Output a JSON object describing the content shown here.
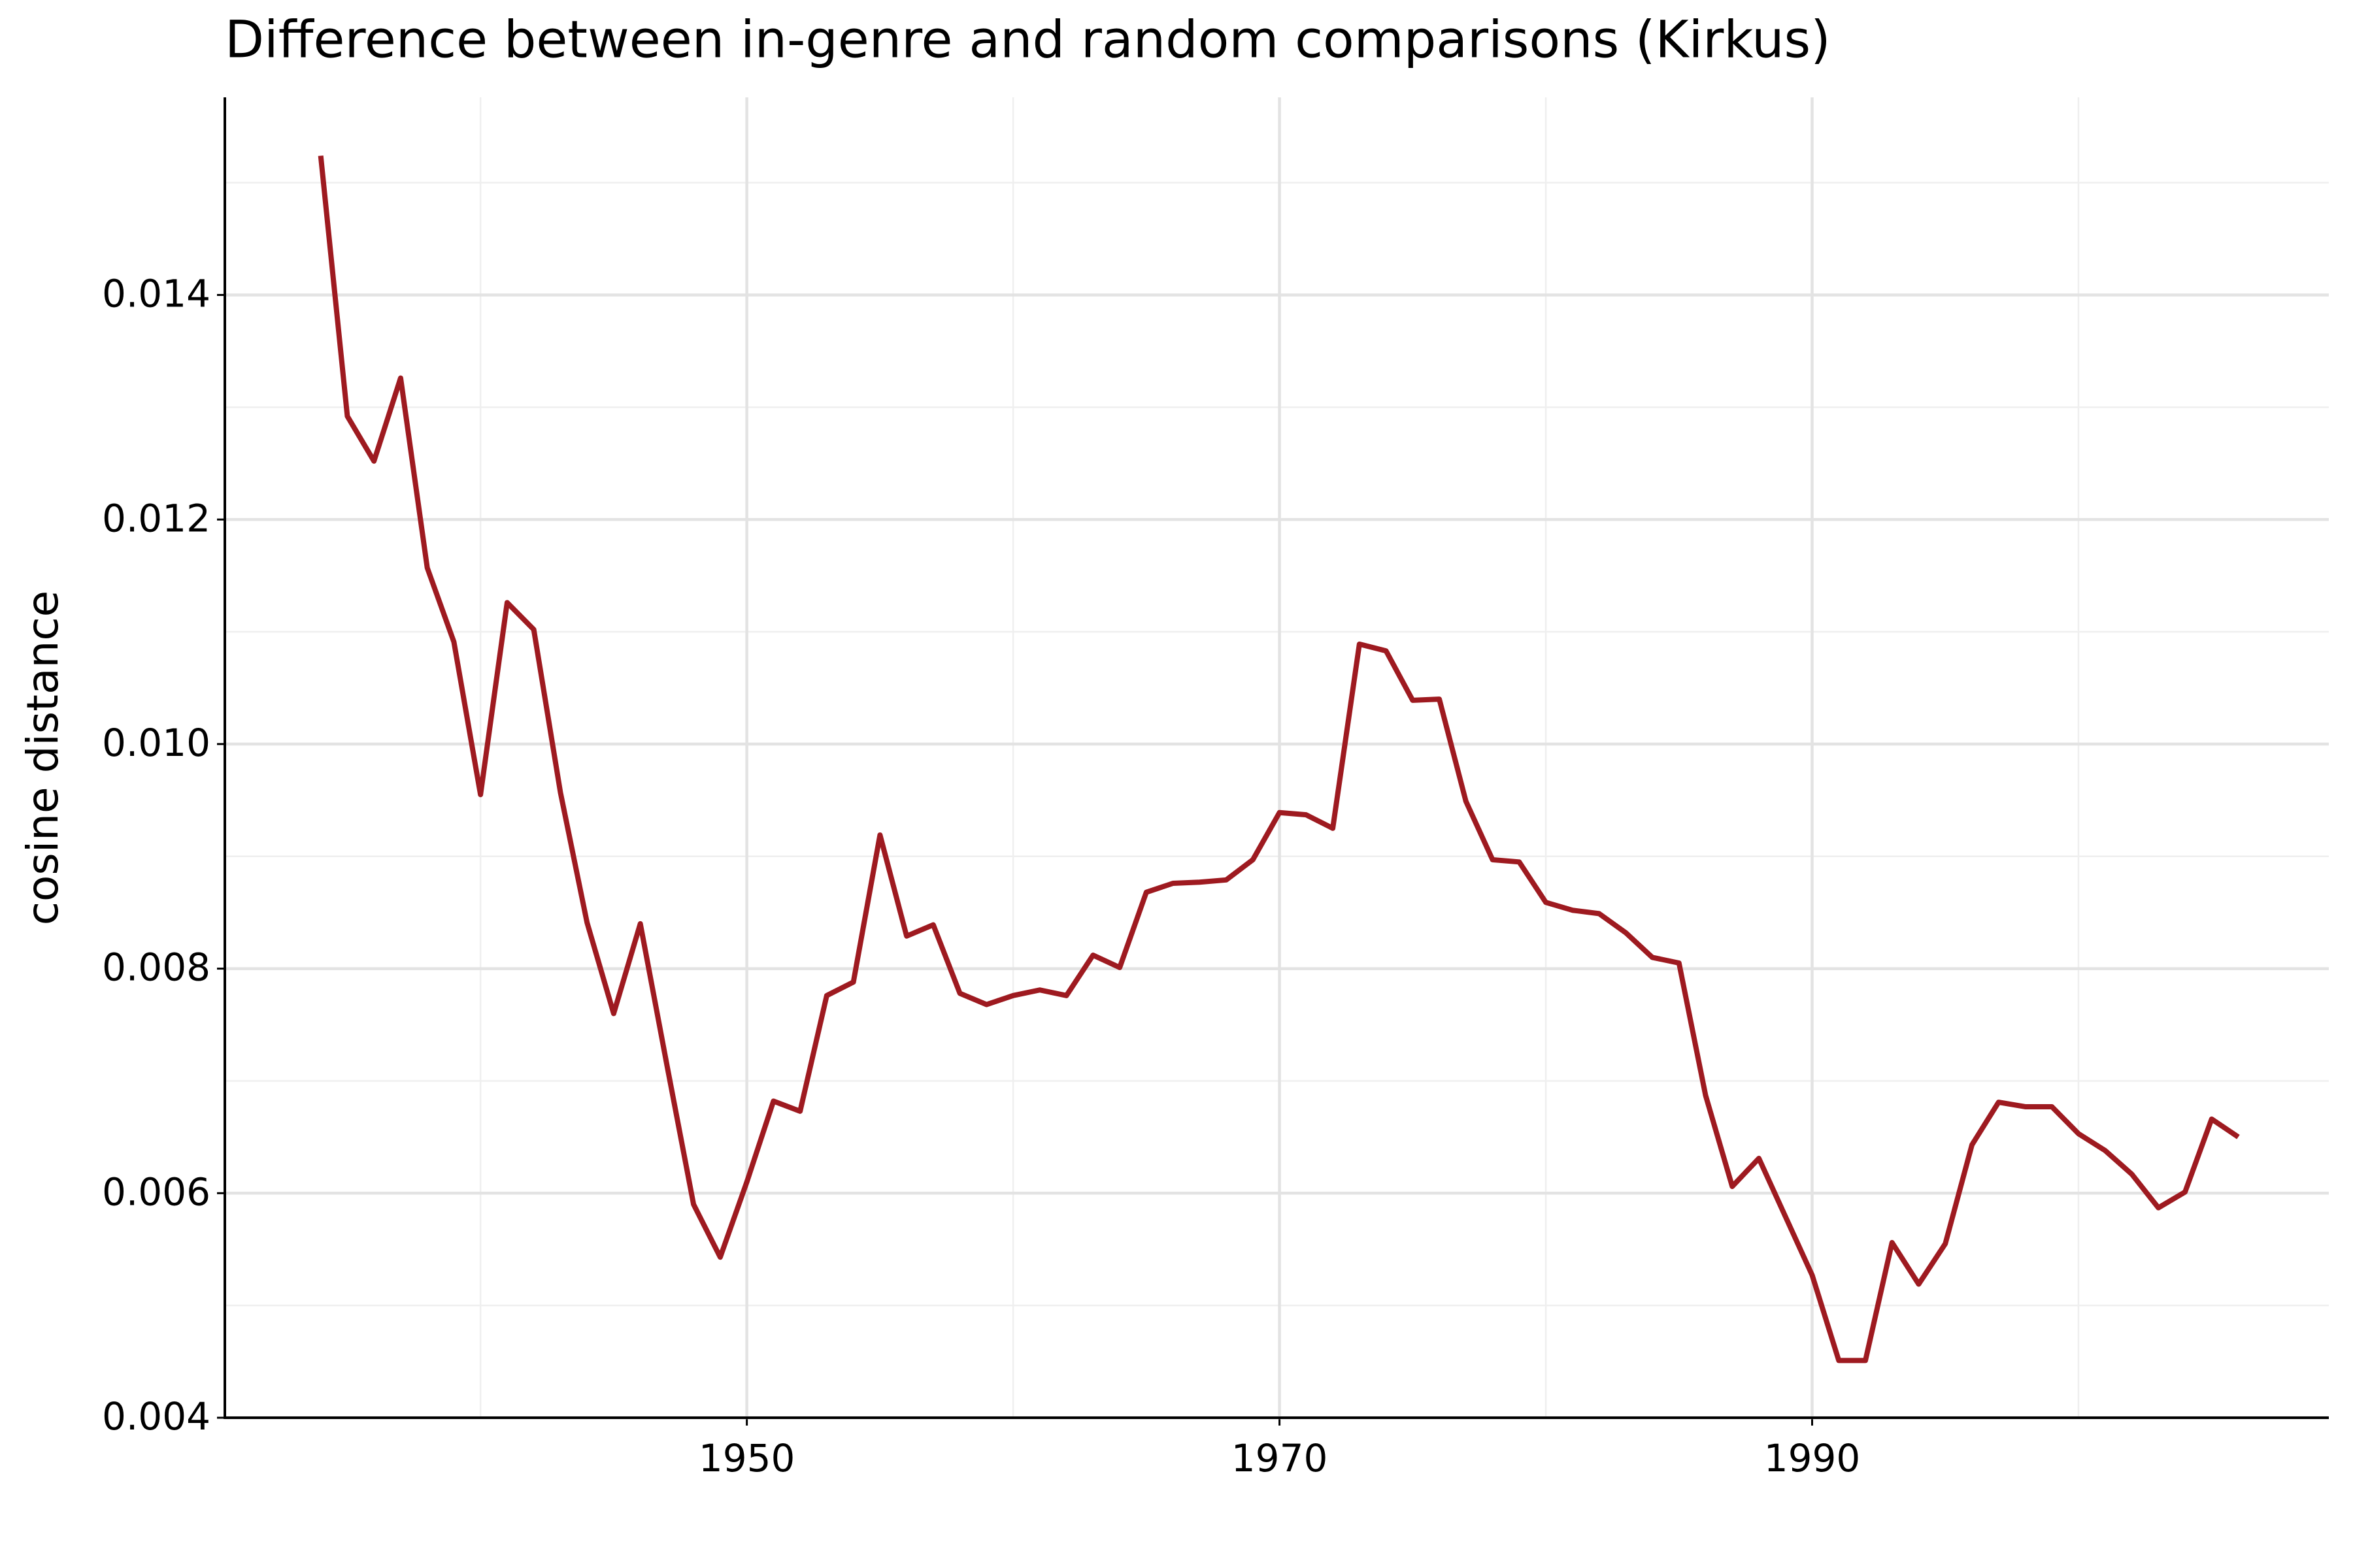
{
  "chart_data": {
    "type": "line",
    "title": "Difference between in-genre and random comparisons (Kirkus)",
    "y_label": "cosine distance",
    "color": "#9e1a20",
    "grid": true,
    "xlim": [
      1930.4,
      2009.4
    ],
    "xticks": [
      1950,
      1970,
      1990
    ],
    "xminor": [
      1940,
      1960,
      1980,
      2000
    ],
    "ylim": [
      0.004,
      0.01576
    ],
    "yticks": [
      0.004,
      0.006,
      0.008,
      {
        "value": 0.01,
        "label": "0.010"
      },
      0.012,
      0.014
    ],
    "yminor": [
      0.005,
      0.007,
      0.009,
      0.011,
      0.013,
      0.015
    ],
    "x": [
      1934,
      1935,
      1936,
      1937,
      1938,
      1939,
      1940,
      1941,
      1942,
      1943,
      1944,
      1945,
      1946,
      1947,
      1948,
      1949,
      1950,
      1951,
      1952,
      1953,
      1954,
      1955,
      1956,
      1957,
      1958,
      1959,
      1960,
      1961,
      1962,
      1963,
      1964,
      1965,
      1966,
      1967,
      1968,
      1969,
      1970,
      1971,
      1972,
      1973,
      1974,
      1975,
      1976,
      1977,
      1978,
      1979,
      1980,
      1981,
      1982,
      1983,
      1984,
      1985,
      1986,
      1987,
      1988,
      1989,
      1990,
      1991,
      1992,
      1993,
      1994,
      1995,
      1996,
      1997,
      1998,
      1999,
      2000,
      2001,
      2002,
      2003,
      2004,
      2005,
      2006
    ],
    "values": [
      0.01524,
      0.01292,
      0.01252,
      0.01326,
      0.01157,
      0.01091,
      0.00955,
      0.01126,
      0.01102,
      0.00957,
      0.00841,
      0.0076,
      0.0084,
      0.00714,
      0.0059,
      0.00543,
      0.0061,
      0.00682,
      0.00673,
      0.00776,
      0.00788,
      0.00919,
      0.00829,
      0.00839,
      0.00778,
      0.00768,
      0.00776,
      0.00781,
      0.00776,
      0.00812,
      0.00801,
      0.00868,
      0.00876,
      0.00877,
      0.00879,
      0.00897,
      0.00939,
      0.00937,
      0.00925,
      0.01089,
      0.01083,
      0.01039,
      0.0104,
      0.00949,
      0.00897,
      0.00895,
      0.00859,
      0.00852,
      0.00849,
      0.00832,
      0.0081,
      0.00805,
      0.00687,
      0.00606,
      0.00631,
      0.00579,
      0.00527,
      0.00451,
      0.00451,
      0.00556,
      0.00519,
      0.00555,
      0.00643,
      0.00681,
      0.00677,
      0.00677,
      0.00653,
      0.00638,
      0.00617,
      0.00587,
      0.00601,
      0.00666,
      0.0065
    ]
  }
}
